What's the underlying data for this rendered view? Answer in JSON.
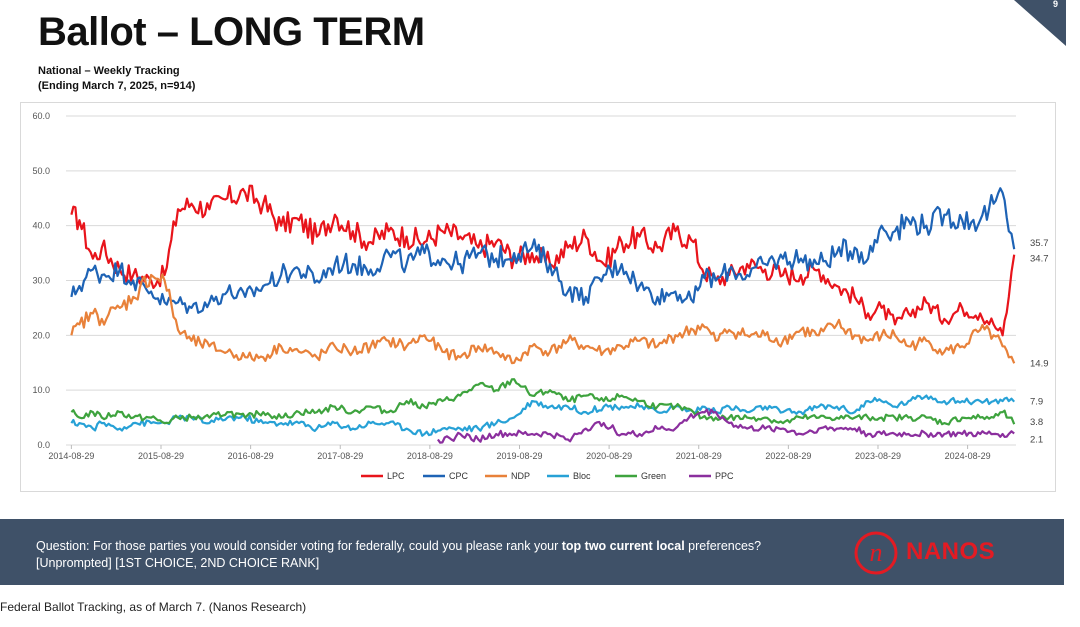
{
  "page": {
    "title": "Ballot – LONG TERM",
    "subtitle_line1": "National – Weekly Tracking",
    "subtitle_line2": "(Ending March 7, 2025, n=914)",
    "page_number": "9",
    "footer_color": "#3f5168",
    "accent_color": "#e31b23"
  },
  "footer": {
    "question_prefix": "Question: For those parties you would consider voting for federally, could you please rank your ",
    "question_bold": "top two current local",
    "question_suffix": " preferences? [Unprompted] [1ST CHOICE, 2ND CHOICE RANK]",
    "logo_text": "NANOS",
    "logo_mark": "n"
  },
  "caption": "Federal Ballot Tracking, as of March 7. (Nanos Research)",
  "chart_data": {
    "type": "line",
    "title": "",
    "xlabel": "",
    "ylabel": "",
    "ylim": [
      0,
      60
    ],
    "y_ticks": [
      "0.0",
      "10.0",
      "20.0",
      "30.0",
      "40.0",
      "50.0",
      "60.0"
    ],
    "x_ticks": [
      "2014-08-29",
      "2015-08-29",
      "2016-08-29",
      "2017-08-29",
      "2018-08-29",
      "2019-08-29",
      "2020-08-29",
      "2021-08-29",
      "2022-08-29",
      "2023-08-29",
      "2024-08-29"
    ],
    "x_range": [
      2014.6,
      2025.2
    ],
    "grid": "horizontal",
    "legend_position": "bottom",
    "end_labels": [
      {
        "text": "35.7",
        "value": 35.7
      },
      {
        "text": "34.7",
        "value": 34.7
      },
      {
        "text": "14.9",
        "value": 14.9
      },
      {
        "text": "7.9",
        "value": 7.9
      },
      {
        "text": "3.8",
        "value": 3.8
      },
      {
        "text": "2.1",
        "value": 2.1
      }
    ],
    "series": [
      {
        "name": "LPC",
        "color": "#e8141b",
        "x": [
          2014.66,
          2014.75,
          2014.9,
          2015.0,
          2015.2,
          2015.35,
          2015.55,
          2015.7,
          2015.85,
          2016.0,
          2016.2,
          2016.4,
          2016.6,
          2016.8,
          2017.0,
          2017.2,
          2017.4,
          2017.6,
          2017.8,
          2018.0,
          2018.2,
          2018.4,
          2018.6,
          2018.8,
          2019.0,
          2019.2,
          2019.4,
          2019.6,
          2019.8,
          2020.0,
          2020.2,
          2020.4,
          2020.6,
          2020.8,
          2021.0,
          2021.2,
          2021.4,
          2021.6,
          2021.7,
          2021.85,
          2022.0,
          2022.2,
          2022.4,
          2022.6,
          2022.8,
          2023.0,
          2023.2,
          2023.4,
          2023.55,
          2023.7,
          2023.85,
          2024.0,
          2024.2,
          2024.4,
          2024.6,
          2024.8,
          2024.95,
          2025.05,
          2025.12,
          2025.18
        ],
        "y": [
          42,
          41,
          34,
          36,
          32,
          31,
          30,
          31,
          43,
          44,
          43,
          45,
          46,
          44,
          40,
          41,
          38,
          42,
          39,
          37,
          39,
          38,
          37,
          39,
          38,
          36,
          37,
          34,
          35,
          33,
          36,
          38,
          33,
          37,
          38,
          36,
          39,
          37,
          32,
          30,
          31,
          33,
          32,
          31,
          31,
          32,
          29,
          27,
          24,
          25,
          22,
          24,
          26,
          23,
          25,
          24,
          22,
          20,
          27,
          34.7
        ]
      },
      {
        "name": "CPC",
        "color": "#1e63b5",
        "x": [
          2014.66,
          2014.75,
          2014.9,
          2015.0,
          2015.2,
          2015.35,
          2015.55,
          2015.7,
          2015.85,
          2016.0,
          2016.2,
          2016.4,
          2016.6,
          2016.8,
          2017.0,
          2017.2,
          2017.4,
          2017.6,
          2017.8,
          2018.0,
          2018.2,
          2018.4,
          2018.6,
          2018.8,
          2019.0,
          2019.2,
          2019.4,
          2019.6,
          2019.8,
          2020.0,
          2020.2,
          2020.4,
          2020.6,
          2020.8,
          2021.0,
          2021.2,
          2021.4,
          2021.6,
          2021.7,
          2021.85,
          2022.0,
          2022.2,
          2022.4,
          2022.6,
          2022.8,
          2023.0,
          2023.2,
          2023.4,
          2023.55,
          2023.7,
          2023.85,
          2024.0,
          2024.2,
          2024.4,
          2024.6,
          2024.8,
          2024.95,
          2025.05,
          2025.12,
          2025.18
        ],
        "y": [
          27,
          29,
          32,
          31,
          32,
          30,
          28,
          26,
          26,
          25,
          26,
          28,
          27,
          29,
          31,
          32,
          30,
          33,
          33,
          32,
          35,
          33,
          35,
          34,
          33,
          35,
          34,
          35,
          36,
          33,
          28,
          27,
          31,
          33,
          29,
          27,
          28,
          26,
          31,
          30,
          32,
          31,
          33,
          34,
          34,
          33,
          35,
          36,
          34,
          40,
          39,
          41,
          40,
          42,
          41,
          41,
          44,
          46,
          39,
          35.7
        ]
      },
      {
        "name": "NDP",
        "color": "#e8813a",
        "x": [
          2014.66,
          2014.75,
          2014.9,
          2015.0,
          2015.2,
          2015.35,
          2015.55,
          2015.7,
          2015.85,
          2016.0,
          2016.2,
          2016.4,
          2016.6,
          2016.8,
          2017.0,
          2017.2,
          2017.4,
          2017.6,
          2017.8,
          2018.0,
          2018.2,
          2018.4,
          2018.6,
          2018.8,
          2019.0,
          2019.2,
          2019.4,
          2019.6,
          2019.8,
          2020.0,
          2020.2,
          2020.4,
          2020.6,
          2020.8,
          2021.0,
          2021.2,
          2021.4,
          2021.6,
          2021.7,
          2021.85,
          2022.0,
          2022.2,
          2022.4,
          2022.6,
          2022.8,
          2023.0,
          2023.2,
          2023.4,
          2023.55,
          2023.7,
          2023.85,
          2024.0,
          2024.2,
          2024.4,
          2024.6,
          2024.8,
          2024.95,
          2025.05,
          2025.12,
          2025.18
        ],
        "y": [
          20,
          22,
          24,
          23,
          25,
          27,
          31,
          30,
          21,
          19,
          18,
          17,
          16,
          16,
          18,
          17,
          16,
          18,
          17,
          18,
          19,
          18,
          20,
          17,
          16,
          18,
          17,
          15,
          18,
          17,
          19,
          18,
          17,
          18,
          19,
          18,
          20,
          21,
          22,
          19,
          21,
          20,
          20,
          19,
          21,
          20,
          22,
          20,
          19,
          20,
          20,
          18,
          19,
          17,
          18,
          21,
          20,
          18,
          16,
          14.9
        ]
      },
      {
        "name": "Bloc",
        "color": "#27a1d6",
        "x": [
          2014.66,
          2014.75,
          2014.9,
          2015.0,
          2015.2,
          2015.35,
          2015.55,
          2015.7,
          2015.85,
          2016.0,
          2016.2,
          2016.4,
          2016.6,
          2016.8,
          2017.0,
          2017.2,
          2017.4,
          2017.6,
          2017.8,
          2018.0,
          2018.2,
          2018.4,
          2018.6,
          2018.8,
          2019.0,
          2019.2,
          2019.4,
          2019.6,
          2019.8,
          2020.0,
          2020.2,
          2020.4,
          2020.6,
          2020.8,
          2021.0,
          2021.2,
          2021.4,
          2021.6,
          2021.7,
          2021.85,
          2022.0,
          2022.2,
          2022.4,
          2022.6,
          2022.8,
          2023.0,
          2023.2,
          2023.4,
          2023.55,
          2023.7,
          2023.85,
          2024.0,
          2024.2,
          2024.4,
          2024.6,
          2024.8,
          2024.95,
          2025.05,
          2025.12,
          2025.18
        ],
        "y": [
          4,
          4,
          3,
          4,
          3,
          4,
          4,
          4,
          5,
          5,
          4,
          5,
          5,
          4,
          4,
          4,
          3,
          4,
          3,
          4,
          4,
          3,
          2,
          3,
          3,
          3,
          4,
          5,
          8,
          7,
          7,
          6,
          7,
          7,
          7,
          6,
          7,
          6,
          7,
          6,
          7,
          6,
          7,
          6,
          6,
          7,
          7,
          6,
          8,
          8,
          7,
          8,
          9,
          8,
          8,
          8,
          8,
          8,
          8,
          7.9
        ]
      },
      {
        "name": "Green",
        "color": "#3ea33e",
        "x": [
          2014.66,
          2014.75,
          2014.9,
          2015.0,
          2015.2,
          2015.35,
          2015.55,
          2015.7,
          2015.85,
          2016.0,
          2016.2,
          2016.4,
          2016.6,
          2016.8,
          2017.0,
          2017.2,
          2017.4,
          2017.6,
          2017.8,
          2018.0,
          2018.2,
          2018.4,
          2018.6,
          2018.8,
          2019.0,
          2019.2,
          2019.4,
          2019.6,
          2019.8,
          2020.0,
          2020.2,
          2020.4,
          2020.6,
          2020.8,
          2021.0,
          2021.2,
          2021.4,
          2021.6,
          2021.7,
          2021.85,
          2022.0,
          2022.2,
          2022.4,
          2022.6,
          2022.8,
          2023.0,
          2023.2,
          2023.4,
          2023.55,
          2023.7,
          2023.85,
          2024.0,
          2024.2,
          2024.4,
          2024.6,
          2024.8,
          2024.95,
          2025.05,
          2025.12,
          2025.18
        ],
        "y": [
          6,
          5,
          6,
          5,
          6,
          5,
          5,
          4,
          5,
          5,
          5,
          6,
          5,
          6,
          5,
          6,
          6,
          7,
          6,
          7,
          6,
          8,
          7,
          8,
          9,
          11,
          10,
          12,
          9,
          10,
          8,
          9,
          8,
          9,
          8,
          7,
          7,
          6,
          5,
          5,
          5,
          5,
          5,
          4,
          5,
          5,
          5,
          5,
          5,
          5,
          5,
          5,
          5,
          4,
          5,
          5,
          5,
          6,
          5,
          3.8
        ]
      },
      {
        "name": "PPC",
        "color": "#8b2f9e",
        "x": [
          2018.75,
          2018.9,
          2019.0,
          2019.2,
          2019.4,
          2019.6,
          2019.8,
          2020.0,
          2020.2,
          2020.4,
          2020.6,
          2020.8,
          2021.0,
          2021.2,
          2021.4,
          2021.55,
          2021.7,
          2021.85,
          2022.0,
          2022.2,
          2022.4,
          2022.6,
          2022.8,
          2023.0,
          2023.2,
          2023.4,
          2023.55,
          2023.7,
          2023.85,
          2024.0,
          2024.2,
          2024.4,
          2024.6,
          2024.8,
          2024.95,
          2025.05,
          2025.12,
          2025.18
        ],
        "y": [
          1,
          1,
          2,
          1,
          2,
          2,
          2,
          2,
          1,
          3,
          4,
          2,
          2,
          3,
          3,
          5,
          6,
          6,
          4,
          3,
          3,
          3,
          2,
          3,
          3,
          3,
          2,
          2,
          2,
          2,
          2,
          2,
          2,
          2,
          2,
          2,
          2,
          2.1
        ]
      }
    ]
  }
}
